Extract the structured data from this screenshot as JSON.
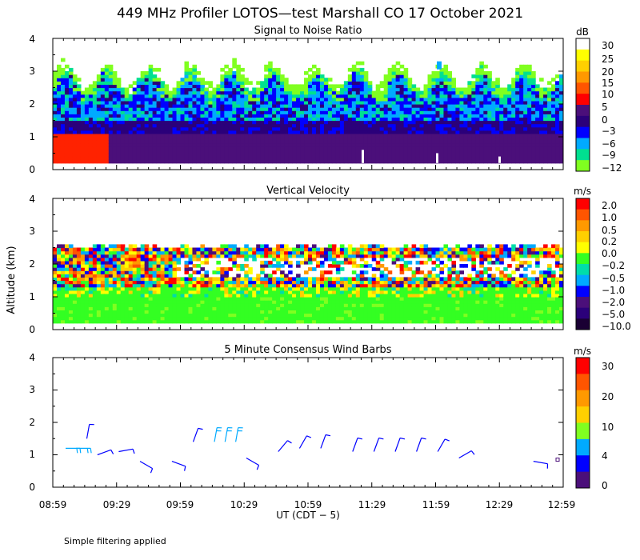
{
  "title": "449 MHz Profiler LOTOS—test Marshall CO 17 October 2021",
  "ylabel": "Altitude (km)",
  "xlabel": "UT  (CDT − 5)",
  "footnote": "Simple filtering applied",
  "x_ticks": [
    "08:59",
    "09:29",
    "09:59",
    "10:29",
    "10:59",
    "11:29",
    "11:59",
    "12:29",
    "12:59"
  ],
  "y_ticks": [
    "0",
    "1",
    "2",
    "3",
    "4"
  ],
  "chart_data": [
    {
      "type": "heatmap",
      "title": "Signal to Noise Ratio",
      "colorbar_unit": "dB",
      "colorbar_labels": [
        "30",
        "25",
        "20",
        "15",
        "10",
        "5",
        "0",
        "−3",
        "−6",
        "−9",
        "−12"
      ],
      "colors": [
        "#ffffff",
        "#ffff00",
        "#ffd000",
        "#ff9900",
        "#ff5500",
        "#ff0000",
        "#4b0f7a",
        "#2b007a",
        "#0000ff",
        "#00aaff",
        "#00e090",
        "#80ff20"
      ],
      "xlim_ut": [
        "08:59",
        "12:59"
      ],
      "ylim_km": [
        0,
        4
      ],
      "description_layers_km": [
        {
          "band": "0.2-1.0",
          "level_db": 5
        },
        {
          "band": "1.0-1.6",
          "level_db": 0
        },
        {
          "band": "1.6-2.4",
          "level_db": -6
        },
        {
          "band": "2.4-3.0",
          "level_db": -12
        }
      ]
    },
    {
      "type": "heatmap",
      "title": "Vertical Velocity",
      "colorbar_unit": "m/s",
      "colorbar_labels": [
        "2.0",
        "1.0",
        "0.5",
        "0.2",
        "0.0",
        "−0.2",
        "−0.5",
        "−1.0",
        "−2.0",
        "−5.0",
        "−10.0"
      ],
      "colors": [
        "#ff0000",
        "#ff5500",
        "#ff9900",
        "#ffd000",
        "#ffff00",
        "#33ff22",
        "#00ddaa",
        "#00aaff",
        "#0000ff",
        "#4b0f7a",
        "#2b007a",
        "#1a0033"
      ],
      "xlim_ut": [
        "08:59",
        "12:59"
      ],
      "ylim_km": [
        0,
        4
      ]
    },
    {
      "type": "scatter",
      "title": "5 Minute Consensus Wind Barbs",
      "colorbar_unit": "m/s",
      "colorbar_labels": [
        "30",
        "20",
        "10",
        "4",
        "0"
      ],
      "colors": [
        "#ff0000",
        "#ff5500",
        "#ff9900",
        "#ffd000",
        "#80ff20",
        "#00aaff",
        "#0000ff",
        "#4b0f7a"
      ],
      "xlim_ut": [
        "08:59",
        "12:59"
      ],
      "ylim_km": [
        0,
        4
      ],
      "barbs": [
        {
          "t": "09:05",
          "alt": 1.2,
          "dir": 270,
          "speed": 6
        },
        {
          "t": "09:10",
          "alt": 1.2,
          "dir": 270,
          "speed": 6
        },
        {
          "t": "09:15",
          "alt": 1.5,
          "dir": 190,
          "speed": 3
        },
        {
          "t": "09:20",
          "alt": 1.0,
          "dir": 250,
          "speed": 4
        },
        {
          "t": "09:30",
          "alt": 1.1,
          "dir": 260,
          "speed": 4
        },
        {
          "t": "09:40",
          "alt": 0.8,
          "dir": 300,
          "speed": 3
        },
        {
          "t": "09:55",
          "alt": 0.8,
          "dir": 290,
          "speed": 3
        },
        {
          "t": "10:05",
          "alt": 1.4,
          "dir": 200,
          "speed": 3
        },
        {
          "t": "10:15",
          "alt": 1.4,
          "dir": 190,
          "speed": 6
        },
        {
          "t": "10:20",
          "alt": 1.4,
          "dir": 190,
          "speed": 6
        },
        {
          "t": "10:25",
          "alt": 1.4,
          "dir": 190,
          "speed": 6
        },
        {
          "t": "10:30",
          "alt": 0.9,
          "dir": 300,
          "speed": 3
        },
        {
          "t": "10:45",
          "alt": 1.1,
          "dir": 220,
          "speed": 3
        },
        {
          "t": "10:55",
          "alt": 1.2,
          "dir": 210,
          "speed": 3
        },
        {
          "t": "11:05",
          "alt": 1.2,
          "dir": 200,
          "speed": 3
        },
        {
          "t": "11:20",
          "alt": 1.1,
          "dir": 200,
          "speed": 3
        },
        {
          "t": "11:30",
          "alt": 1.1,
          "dir": 200,
          "speed": 3
        },
        {
          "t": "11:40",
          "alt": 1.1,
          "dir": 200,
          "speed": 3
        },
        {
          "t": "11:50",
          "alt": 1.1,
          "dir": 200,
          "speed": 3
        },
        {
          "t": "12:00",
          "alt": 1.1,
          "dir": 210,
          "speed": 3
        },
        {
          "t": "12:10",
          "alt": 0.9,
          "dir": 240,
          "speed": 2
        },
        {
          "t": "12:45",
          "alt": 0.8,
          "dir": 280,
          "speed": 2
        }
      ]
    }
  ]
}
